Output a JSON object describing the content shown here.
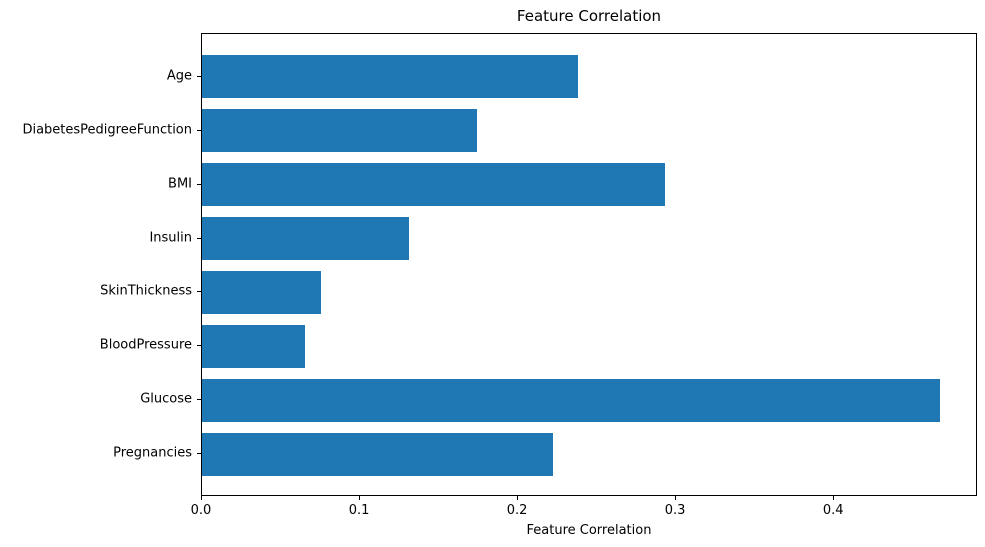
{
  "chart_data": {
    "type": "bar",
    "orientation": "horizontal",
    "title": "Feature Correlation",
    "xlabel": "Feature Correlation",
    "ylabel": "",
    "categories_top_to_bottom": [
      "Age",
      "DiabetesPedigreeFunction",
      "BMI",
      "Insulin",
      "SkinThickness",
      "BloodPressure",
      "Glucose",
      "Pregnancies"
    ],
    "values_top_to_bottom": [
      0.238,
      0.174,
      0.293,
      0.131,
      0.075,
      0.065,
      0.467,
      0.222
    ],
    "xlim": [
      0,
      0.491
    ],
    "xtick_values": [
      0.0,
      0.1,
      0.2,
      0.3,
      0.4
    ],
    "xtick_labels": [
      "0.0",
      "0.1",
      "0.2",
      "0.3",
      "0.4"
    ],
    "bar_color": "#1f77b4",
    "spine_color": "#000000",
    "text_color": "#000000",
    "background_color": "#ffffff",
    "grid": false,
    "legend": null
  }
}
